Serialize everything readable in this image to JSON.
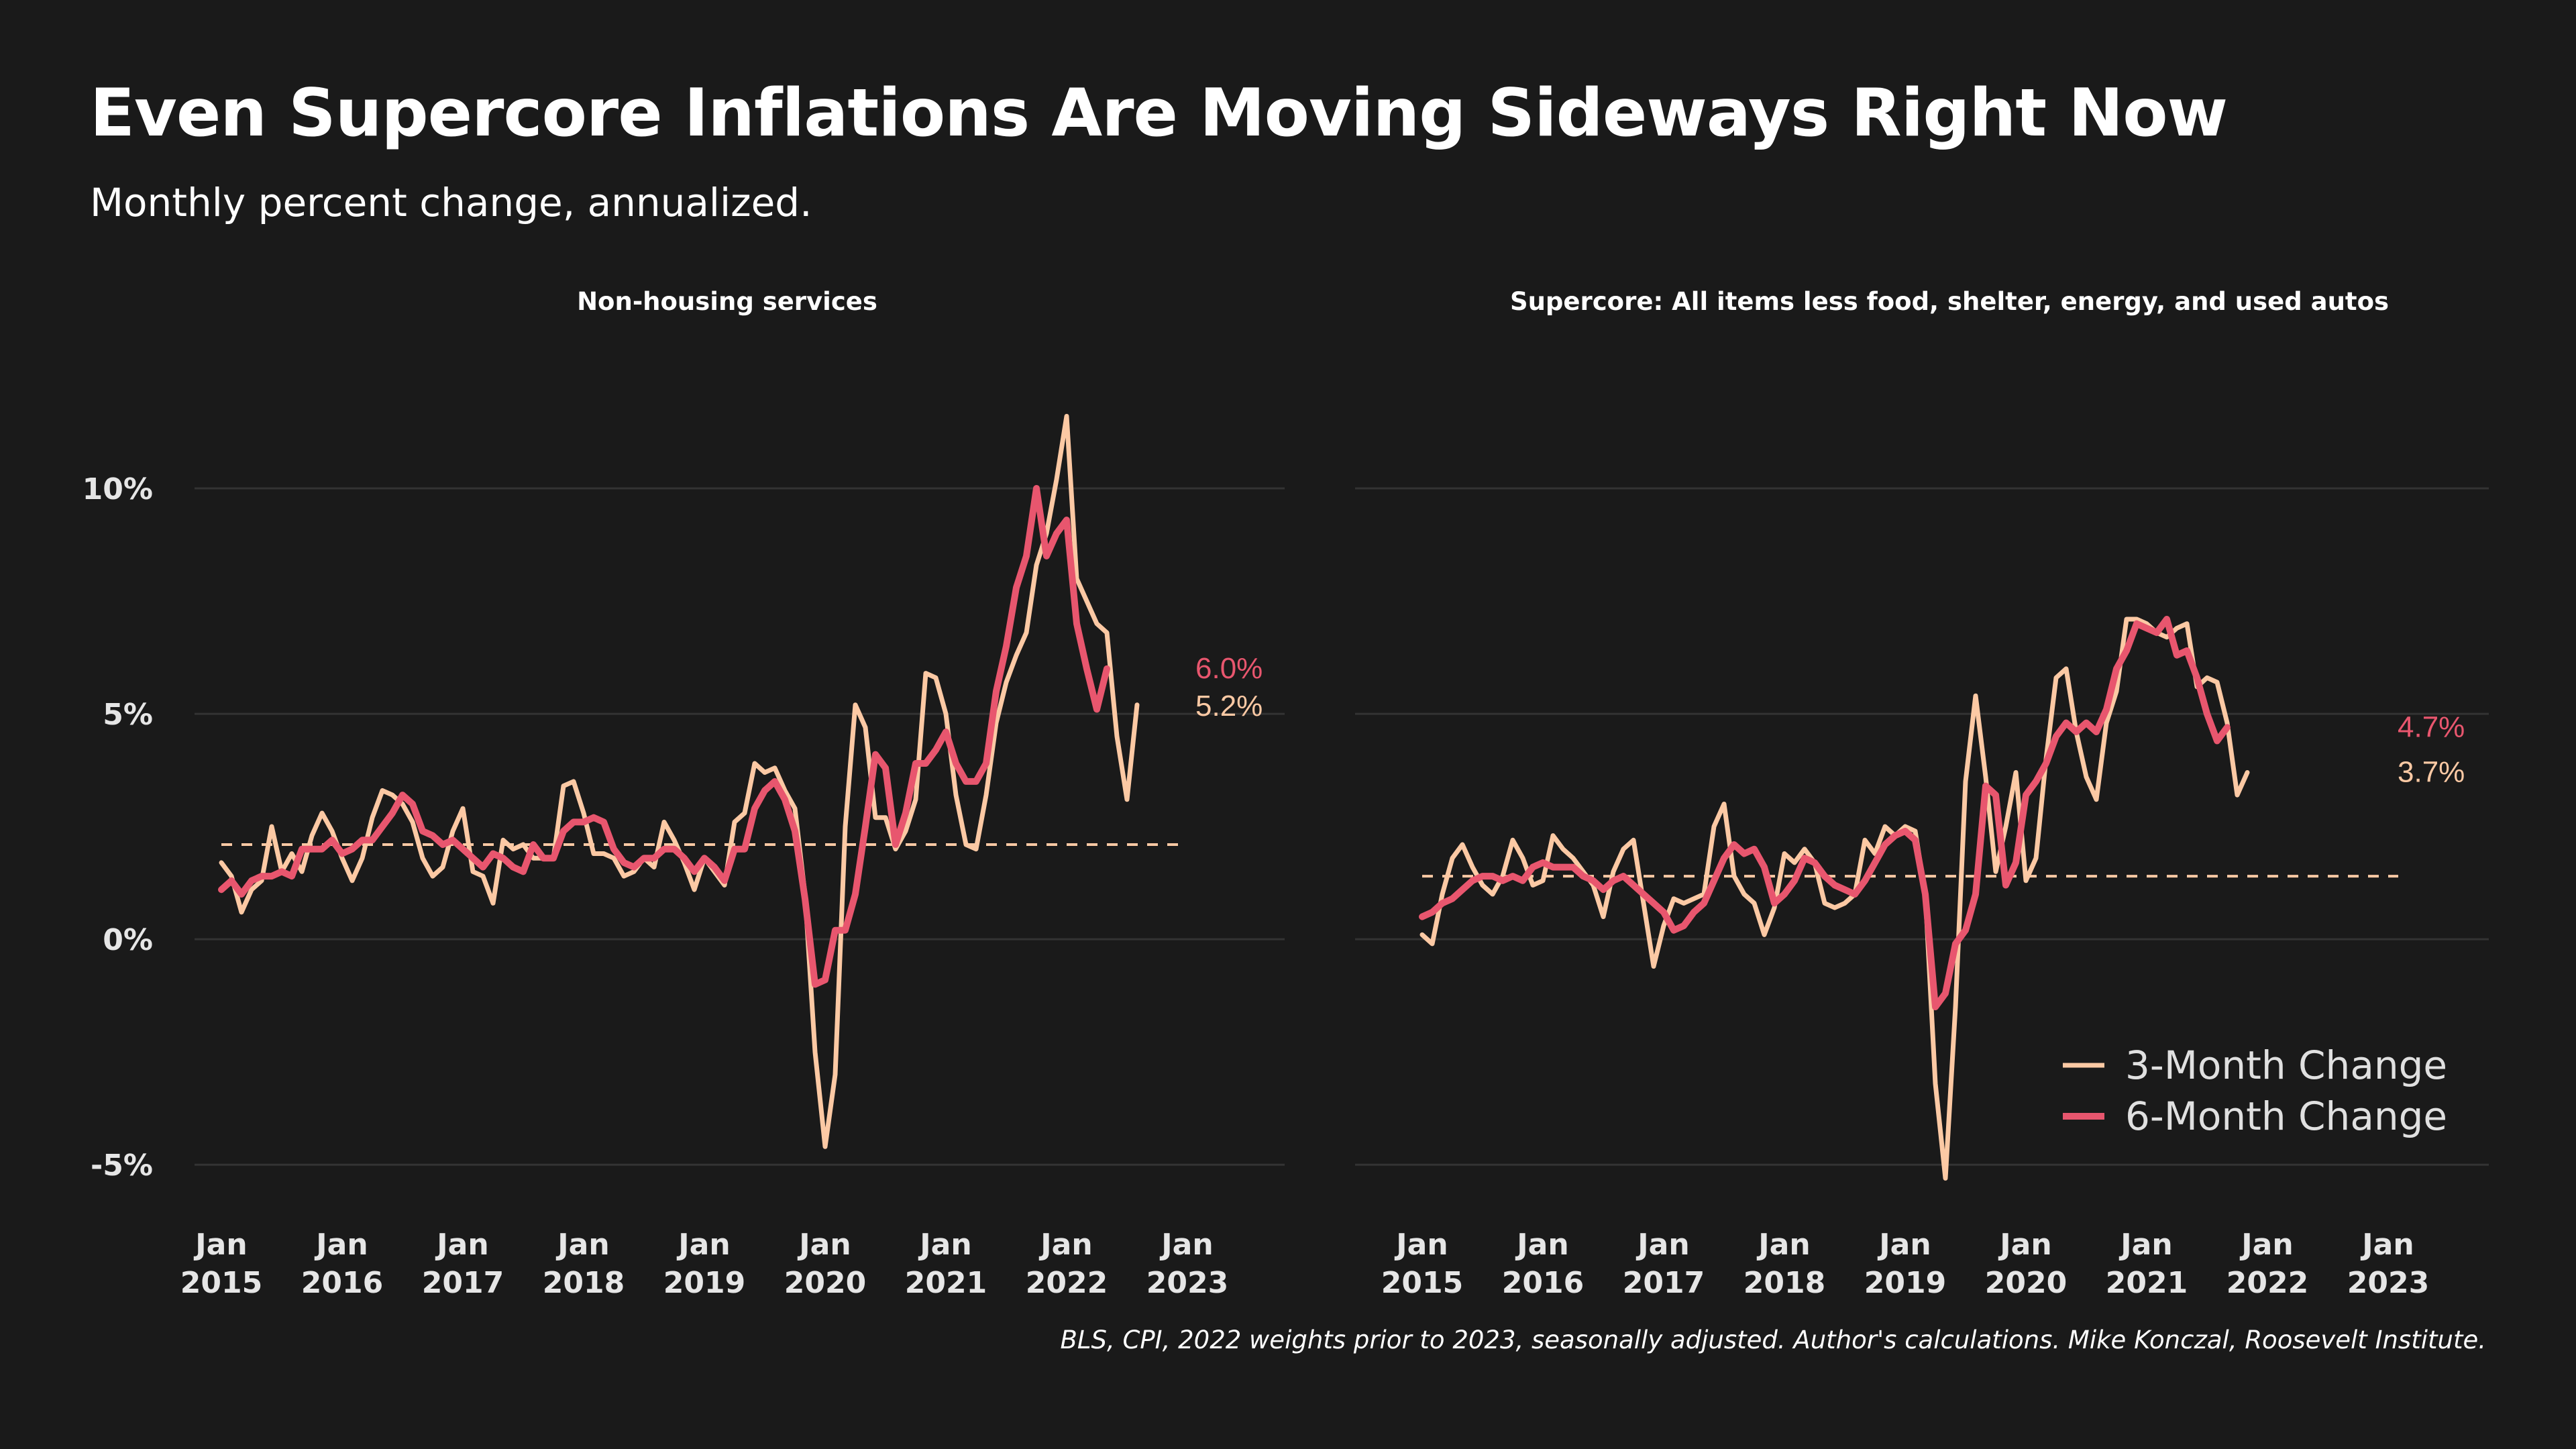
{
  "title": "Even Supercore Inflations Are Moving Sideways Right Now",
  "subtitle": "Monthly percent change, annualized.",
  "source": "BLS, CPI, 2022 weights prior to 2023, seasonally adjusted. Author's calculations. Mike Konczal, Roosevelt Institute.",
  "colors": {
    "background": "#1a1a1a",
    "grid": "#333333",
    "three_month": "#fcc9a4",
    "six_month": "#e8566e",
    "text": "#ffffff"
  },
  "legend": {
    "items": [
      {
        "label": "3-Month Change",
        "color": "#fcc9a4"
      },
      {
        "label": "6-Month Change",
        "color": "#e8566e"
      }
    ],
    "placement": "bottom-right of right panel"
  },
  "chart_data": [
    {
      "type": "line",
      "title": "Non-housing services",
      "xlabel": "",
      "ylabel": "",
      "ylim": [
        -5.8,
        12.5
      ],
      "yticks": [
        {
          "value": -5,
          "label": "-5%"
        },
        {
          "value": 0,
          "label": "0%"
        },
        {
          "value": 5,
          "label": "5%"
        },
        {
          "value": 10,
          "label": "10%"
        }
      ],
      "xticks": [
        {
          "year": 2015,
          "label": "Jan\n2015"
        },
        {
          "year": 2016,
          "label": "Jan\n2016"
        },
        {
          "year": 2017,
          "label": "Jan\n2017"
        },
        {
          "year": 2018,
          "label": "Jan\n2018"
        },
        {
          "year": 2019,
          "label": "Jan\n2019"
        },
        {
          "year": 2020,
          "label": "Jan\n2020"
        },
        {
          "year": 2021,
          "label": "Jan\n2021"
        },
        {
          "year": 2022,
          "label": "Jan\n2022"
        },
        {
          "year": 2023,
          "label": "Jan\n2023"
        }
      ],
      "x_start": "2015-01",
      "x_end": "2023-01",
      "reference_value": 2.1,
      "series": [
        {
          "name": "3-Month Change",
          "color": "#fcc9a4",
          "end_label": "5.2%",
          "values": [
            1.7,
            1.4,
            0.6,
            1.1,
            1.3,
            2.5,
            1.5,
            1.9,
            1.5,
            2.3,
            2.8,
            2.4,
            1.8,
            1.3,
            1.8,
            2.7,
            3.3,
            3.2,
            3.0,
            2.6,
            1.8,
            1.4,
            1.6,
            2.4,
            2.9,
            1.5,
            1.4,
            0.8,
            2.2,
            2.0,
            2.1,
            1.8,
            1.8,
            1.8,
            3.4,
            3.5,
            2.8,
            1.9,
            1.9,
            1.8,
            1.4,
            1.5,
            1.8,
            1.6,
            2.6,
            2.2,
            1.7,
            1.1,
            1.8,
            1.5,
            1.2,
            2.6,
            2.8,
            3.9,
            3.7,
            3.8,
            3.3,
            2.9,
            1.0,
            -2.5,
            -4.6,
            -3.0,
            2.5,
            5.2,
            4.7,
            2.7,
            2.7,
            2.0,
            2.4,
            3.1,
            5.9,
            5.8,
            5.0,
            3.2,
            2.1,
            2.0,
            3.2,
            4.8,
            5.7,
            6.3,
            6.8,
            8.3,
            9.0,
            10.2,
            11.6,
            8.0,
            7.5,
            7.0,
            6.8,
            4.5,
            3.1,
            5.2
          ]
        },
        {
          "name": "6-Month Change",
          "color": "#e8566e",
          "end_label": "6.0%",
          "values": [
            1.1,
            1.3,
            1.0,
            1.3,
            1.4,
            1.4,
            1.5,
            1.4,
            2.0,
            2.0,
            2.0,
            2.2,
            1.9,
            2.0,
            2.2,
            2.2,
            2.5,
            2.8,
            3.2,
            3.0,
            2.4,
            2.3,
            2.1,
            2.2,
            2.0,
            1.8,
            1.6,
            1.9,
            1.8,
            1.6,
            1.5,
            2.1,
            1.8,
            1.8,
            2.4,
            2.6,
            2.6,
            2.7,
            2.6,
            2.0,
            1.7,
            1.6,
            1.8,
            1.8,
            2.0,
            2.0,
            1.8,
            1.5,
            1.8,
            1.6,
            1.3,
            2.0,
            2.0,
            2.9,
            3.3,
            3.5,
            3.1,
            2.4,
            0.9,
            -1.0,
            -0.9,
            0.2,
            0.2,
            1.0,
            2.5,
            4.1,
            3.8,
            2.1,
            2.8,
            3.9,
            3.9,
            4.2,
            4.6,
            3.9,
            3.5,
            3.5,
            3.9,
            5.5,
            6.5,
            7.8,
            8.5,
            10.0,
            8.5,
            9.0,
            9.3,
            7.0,
            6.0,
            5.1,
            6.0
          ]
        }
      ]
    },
    {
      "type": "line",
      "title": "Supercore: All items less food, shelter, energy, and used autos",
      "xlabel": "",
      "ylabel": "",
      "ylim": [
        -5.8,
        12.5
      ],
      "yticks": [
        {
          "value": -5
        },
        {
          "value": 0
        },
        {
          "value": 5
        },
        {
          "value": 10
        }
      ],
      "xticks": [
        {
          "year": 2015,
          "label": "Jan\n2015"
        },
        {
          "year": 2016,
          "label": "Jan\n2016"
        },
        {
          "year": 2017,
          "label": "Jan\n2017"
        },
        {
          "year": 2018,
          "label": "Jan\n2018"
        },
        {
          "year": 2019,
          "label": "Jan\n2019"
        },
        {
          "year": 2020,
          "label": "Jan\n2020"
        },
        {
          "year": 2021,
          "label": "Jan\n2021"
        },
        {
          "year": 2022,
          "label": "Jan\n2022"
        },
        {
          "year": 2023,
          "label": "Jan\n2023"
        }
      ],
      "x_start": "2015-01",
      "x_end": "2023-02",
      "reference_value": 1.4,
      "series": [
        {
          "name": "3-Month Change",
          "color": "#fcc9a4",
          "end_label": "3.7%",
          "values": [
            0.1,
            -0.1,
            1.0,
            1.8,
            2.1,
            1.6,
            1.2,
            1.0,
            1.4,
            2.2,
            1.8,
            1.2,
            1.3,
            2.3,
            2.0,
            1.8,
            1.5,
            1.2,
            0.5,
            1.5,
            2.0,
            2.2,
            0.8,
            -0.6,
            0.3,
            0.9,
            0.8,
            0.9,
            1.0,
            2.5,
            3.0,
            1.4,
            1.0,
            0.8,
            0.1,
            0.7,
            1.9,
            1.7,
            2.0,
            1.7,
            0.8,
            0.7,
            0.8,
            1.0,
            2.2,
            1.9,
            2.5,
            2.3,
            2.5,
            2.4,
            1.0,
            -3.2,
            -5.3,
            -1.5,
            3.5,
            5.4,
            3.6,
            1.5,
            2.5,
            3.7,
            1.3,
            1.8,
            4.0,
            5.8,
            6.0,
            4.6,
            3.6,
            3.1,
            4.8,
            5.5,
            7.1,
            7.1,
            7.0,
            6.8,
            6.7,
            6.9,
            7.0,
            5.6,
            5.8,
            5.7,
            4.8,
            3.2,
            3.7
          ]
        },
        {
          "name": "6-Month Change",
          "color": "#e8566e",
          "end_label": "4.7%",
          "values": [
            0.5,
            0.6,
            0.8,
            0.9,
            1.1,
            1.3,
            1.4,
            1.4,
            1.3,
            1.4,
            1.3,
            1.6,
            1.7,
            1.6,
            1.6,
            1.6,
            1.4,
            1.3,
            1.1,
            1.3,
            1.4,
            1.2,
            1.0,
            0.8,
            0.6,
            0.2,
            0.3,
            0.6,
            0.8,
            1.3,
            1.8,
            2.1,
            1.9,
            2.0,
            1.6,
            0.8,
            1.0,
            1.3,
            1.8,
            1.7,
            1.4,
            1.2,
            1.1,
            1.0,
            1.3,
            1.7,
            2.1,
            2.3,
            2.4,
            2.2,
            1.0,
            -1.5,
            -1.2,
            -0.1,
            0.2,
            1.0,
            3.4,
            3.2,
            1.2,
            1.7,
            3.2,
            3.5,
            3.9,
            4.5,
            4.8,
            4.6,
            4.8,
            4.6,
            5.1,
            6.0,
            6.4,
            7.0,
            6.9,
            6.8,
            7.1,
            6.3,
            6.4,
            5.8,
            5.0,
            4.4,
            4.7
          ]
        }
      ]
    }
  ]
}
